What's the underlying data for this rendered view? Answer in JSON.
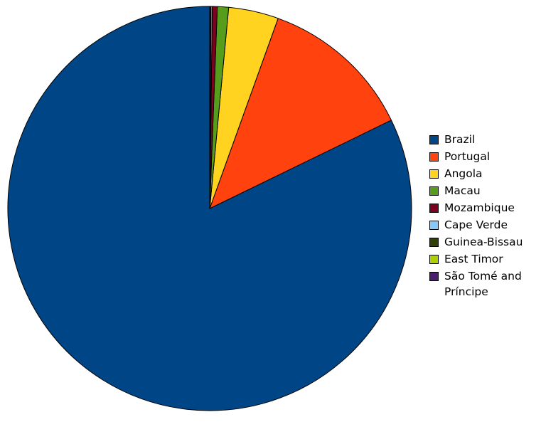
{
  "chart_data": {
    "type": "pie",
    "categories": [
      "Brazil",
      "Portugal",
      "Angola",
      "Macau",
      "Mozambique",
      "Cape Verde",
      "Guinea-Bissau",
      "East Timor",
      "São Tomé and Príncipe"
    ],
    "values": [
      82.2,
      12.3,
      4.0,
      0.9,
      0.4,
      0.1,
      0.04,
      0.03,
      0.03
    ],
    "colors": [
      "#004586",
      "#ff420e",
      "#ffd320",
      "#579d1c",
      "#7e0021",
      "#83caff",
      "#314004",
      "#aecf00",
      "#4b1f6f"
    ],
    "legend": "right"
  }
}
